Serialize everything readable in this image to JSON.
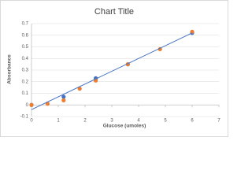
{
  "chart_data": {
    "type": "scatter",
    "title": "Chart Title",
    "x_label": "Glucose (umoles)",
    "y_label": "Absorbance",
    "xlim": [
      0,
      7
    ],
    "xticks": [
      0,
      1,
      2,
      3,
      4,
      5,
      6,
      7
    ],
    "ylim": [
      -0.1,
      0.7
    ],
    "yticks": [
      -0.1,
      0,
      0.1,
      0.2,
      0.3,
      0.4,
      0.5,
      0.6,
      0.7
    ],
    "grid": true,
    "series": [
      {
        "color": "#4472c4",
        "x": [
          0,
          1.2,
          2.4,
          3.6,
          6
        ],
        "values": [
          0,
          0.07,
          0.23,
          0.35,
          0.62
        ]
      },
      {
        "color": "#ed7d31",
        "x": [
          0,
          0.6,
          1.2,
          1.8,
          2.4,
          3.6,
          4.8,
          6
        ],
        "values": [
          0,
          0.01,
          0.04,
          0.14,
          0.21,
          0.35,
          0.48,
          0.63
        ]
      }
    ],
    "trendline": {
      "color": "#4472c4",
      "x": [
        0,
        6
      ],
      "values": [
        -0.04,
        0.62
      ]
    }
  }
}
